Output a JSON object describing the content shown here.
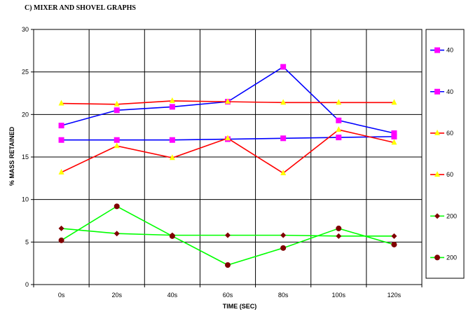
{
  "chart_data": {
    "type": "line",
    "title": "C) MIXER AND SHOVEL GRAPHS",
    "xlabel": "TIME (SEC)",
    "ylabel": "% MASS RETAINED",
    "categories": [
      "0s",
      "20s",
      "40s",
      "60s",
      "80s",
      "100s",
      "120s"
    ],
    "ylim": [
      0,
      30
    ],
    "yticks": [
      0,
      5,
      10,
      15,
      20,
      25,
      30
    ],
    "grid": true,
    "legend_position": "right",
    "series": [
      {
        "name": "40",
        "line_color": "#0000ff",
        "marker": "square",
        "marker_color": "#ff00ff",
        "values": [
          18.7,
          20.5,
          20.9,
          21.5,
          25.6,
          19.3,
          17.8
        ]
      },
      {
        "name": "40",
        "line_color": "#0000ff",
        "marker": "square",
        "marker_color": "#ff00ff",
        "values": [
          17.0,
          17.0,
          17.0,
          17.1,
          17.2,
          17.3,
          17.4
        ]
      },
      {
        "name": "60",
        "line_color": "#ff0000",
        "marker": "triangle",
        "marker_color": "#ffff00",
        "values": [
          21.3,
          21.2,
          21.6,
          21.5,
          21.4,
          21.4,
          21.4
        ]
      },
      {
        "name": "60",
        "line_color": "#ff0000",
        "marker": "triangle",
        "marker_color": "#ffff00",
        "values": [
          13.2,
          16.3,
          14.9,
          17.2,
          13.1,
          18.2,
          16.7
        ]
      },
      {
        "name": "200",
        "line_color": "#00ff00",
        "marker": "diamond",
        "marker_color": "#800000",
        "values": [
          6.6,
          6.0,
          5.8,
          5.8,
          5.8,
          5.7,
          5.7
        ]
      },
      {
        "name": "200",
        "line_color": "#00ff00",
        "marker": "circle",
        "marker_color": "#800000",
        "values": [
          5.2,
          9.2,
          5.7,
          2.3,
          4.3,
          6.6,
          4.7
        ]
      }
    ]
  }
}
